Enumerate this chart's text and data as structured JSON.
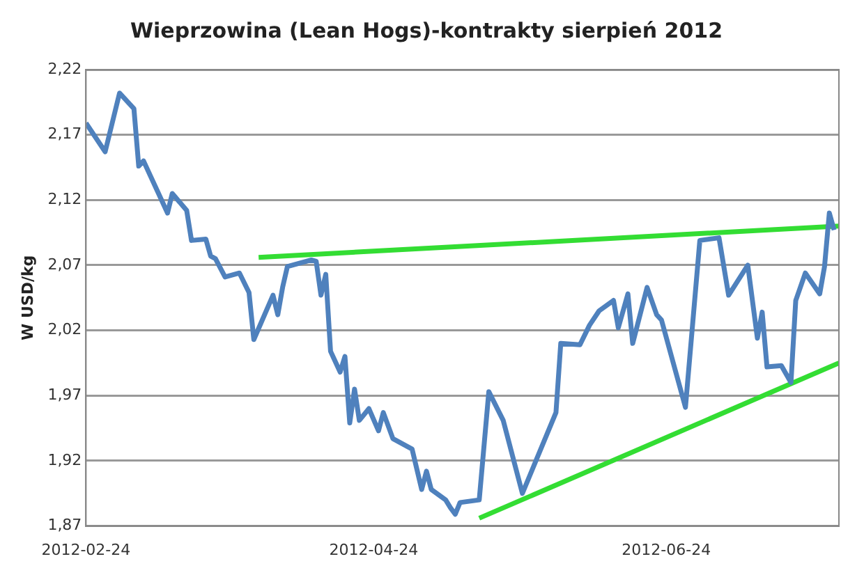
{
  "chart_data": {
    "type": "line",
    "title": "Wieprzowina (Lean Hogs)-kontrakty sierpień 2012",
    "ylabel": "W USD/kg",
    "xlim": [
      "2012-02-24",
      "2012-07-30"
    ],
    "xticks": [
      "2012-02-24",
      "2012-04-24",
      "2012-06-24"
    ],
    "ylim": [
      1.87,
      2.22
    ],
    "yticks": [
      {
        "value": 1.87,
        "label": "1,87"
      },
      {
        "value": 1.92,
        "label": "1,92"
      },
      {
        "value": 1.97,
        "label": "1,97"
      },
      {
        "value": 2.02,
        "label": "2,02"
      },
      {
        "value": 2.07,
        "label": "2,07"
      },
      {
        "value": 2.12,
        "label": "2,12"
      },
      {
        "value": 2.17,
        "label": "2,17"
      },
      {
        "value": 2.22,
        "label": "2,22"
      }
    ],
    "grid": "y",
    "legend": false,
    "marker": "none",
    "series": [
      {
        "color": "#4f81bd",
        "x": [
          "2012-02-24",
          "2012-02-28",
          "2012-03-02",
          "2012-03-05",
          "2012-03-06",
          "2012-03-07",
          "2012-03-10",
          "2012-03-12",
          "2012-03-13",
          "2012-03-16",
          "2012-03-17",
          "2012-03-20",
          "2012-03-21",
          "2012-03-22",
          "2012-03-24",
          "2012-03-27",
          "2012-03-29",
          "2012-03-30",
          "2012-04-03",
          "2012-04-04",
          "2012-04-05",
          "2012-04-06",
          "2012-04-11",
          "2012-04-12",
          "2012-04-13",
          "2012-04-14",
          "2012-04-15",
          "2012-04-17",
          "2012-04-18",
          "2012-04-19",
          "2012-04-20",
          "2012-04-21",
          "2012-04-23",
          "2012-04-25",
          "2012-04-26",
          "2012-04-28",
          "2012-05-02",
          "2012-05-04",
          "2012-05-05",
          "2012-05-06",
          "2012-05-09",
          "2012-05-10",
          "2012-05-11",
          "2012-05-12",
          "2012-05-16",
          "2012-05-18",
          "2012-05-21",
          "2012-05-25",
          "2012-06-01",
          "2012-06-02",
          "2012-06-06",
          "2012-06-08",
          "2012-06-10",
          "2012-06-13",
          "2012-06-14",
          "2012-06-16",
          "2012-06-17",
          "2012-06-20",
          "2012-06-22",
          "2012-06-23",
          "2012-06-28",
          "2012-07-01",
          "2012-07-05",
          "2012-07-07",
          "2012-07-11",
          "2012-07-13",
          "2012-07-14",
          "2012-07-15",
          "2012-07-18",
          "2012-07-20",
          "2012-07-21",
          "2012-07-23",
          "2012-07-26",
          "2012-07-27",
          "2012-07-28",
          "2012-07-29"
        ],
        "values": [
          2.179,
          2.157,
          2.202,
          2.19,
          2.146,
          2.15,
          2.126,
          2.11,
          2.125,
          2.112,
          2.089,
          2.09,
          2.077,
          2.075,
          2.061,
          2.064,
          2.049,
          2.013,
          2.047,
          2.032,
          2.053,
          2.069,
          2.074,
          2.073,
          2.047,
          2.063,
          2.004,
          1.988,
          2.0,
          1.949,
          1.975,
          1.951,
          1.96,
          1.943,
          1.957,
          1.937,
          1.929,
          1.898,
          1.912,
          1.898,
          1.89,
          1.884,
          1.879,
          1.888,
          1.89,
          1.973,
          1.951,
          1.895,
          1.957,
          2.01,
          2.009,
          2.024,
          2.035,
          2.043,
          2.022,
          2.048,
          2.01,
          2.053,
          2.032,
          2.028,
          1.961,
          2.089,
          2.091,
          2.047,
          2.07,
          2.014,
          2.034,
          1.992,
          1.993,
          1.98,
          2.043,
          2.064,
          2.048,
          2.069,
          2.11,
          2.097
        ]
      },
      {
        "color": "#33dd33",
        "x": [
          "2012-03-31",
          "2012-07-30"
        ],
        "values": [
          2.076,
          2.1
        ]
      },
      {
        "color": "#33dd33",
        "x": [
          "2012-05-16",
          "2012-07-30"
        ],
        "values": [
          1.876,
          1.995
        ]
      }
    ]
  }
}
